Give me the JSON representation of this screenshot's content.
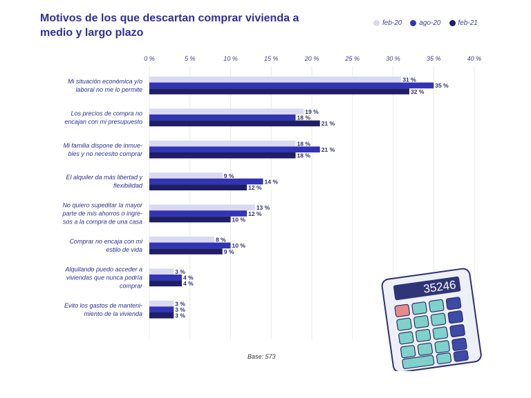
{
  "title": "Motivos de los que descartan comprar vivienda a medio y largo plazo",
  "base_note": "Base: 573",
  "calculator_display": "35246",
  "legend": [
    {
      "label": "feb-20",
      "color": "#d9daf0"
    },
    {
      "label": "ago-20",
      "color": "#3333b5"
    },
    {
      "label": "feb-21",
      "color": "#1e1f66"
    }
  ],
  "chart_data": {
    "type": "bar",
    "orientation": "horizontal",
    "title": "Motivos de los que descartan comprar vivienda a medio y largo plazo",
    "xlim": [
      0,
      40
    ],
    "xticks": [
      "0 %",
      "5 %",
      "10 %",
      "15 %",
      "20 %",
      "25 %",
      "30 %",
      "35 %",
      "40 %"
    ],
    "categories": [
      [
        "Mi situación económica y/o",
        "laboral no me lo permite"
      ],
      [
        "Los precios de compra no",
        "encajan con mi presupuesto"
      ],
      [
        "Mi familia dispone de inmue-",
        "bles y no necesito comprar"
      ],
      [
        "El alquiler da más libertad y",
        "flexibilidad"
      ],
      [
        "No quiero supeditar la mayor",
        "parte de mis ahorros o ingre-",
        "sos a la compra de una casa"
      ],
      [
        "Comprar no encaja con mi",
        "estilo de vida"
      ],
      [
        "Alquilando puedo acceder a",
        "viviendas que nunca podría",
        "comprar"
      ],
      [
        "Evito los gastos de manteni-",
        "miento de la vivienda"
      ]
    ],
    "series": [
      {
        "name": "feb-20",
        "color": "#d9daf0",
        "values": [
          31,
          19,
          18,
          9,
          13,
          8,
          3,
          3
        ],
        "labels": [
          "31 %",
          "19 %",
          "18 %",
          "9 %",
          "13 %",
          "8 %",
          "3 %",
          "3 %"
        ]
      },
      {
        "name": "ago-20",
        "color": "#3333b5",
        "values": [
          35,
          18,
          21,
          14,
          12,
          10,
          4,
          3
        ],
        "labels": [
          "35 %",
          "18 %",
          "21 %",
          "14 %",
          "12 %",
          "10 %",
          "4 %",
          "3 %"
        ]
      },
      {
        "name": "feb-21",
        "color": "#1e1f66",
        "values": [
          32,
          21,
          18,
          12,
          10,
          9,
          4,
          3
        ],
        "labels": [
          "32 %",
          "21 %",
          "18 %",
          "12 %",
          "10 %",
          "9 %",
          "4 %",
          "3 %"
        ]
      }
    ]
  }
}
